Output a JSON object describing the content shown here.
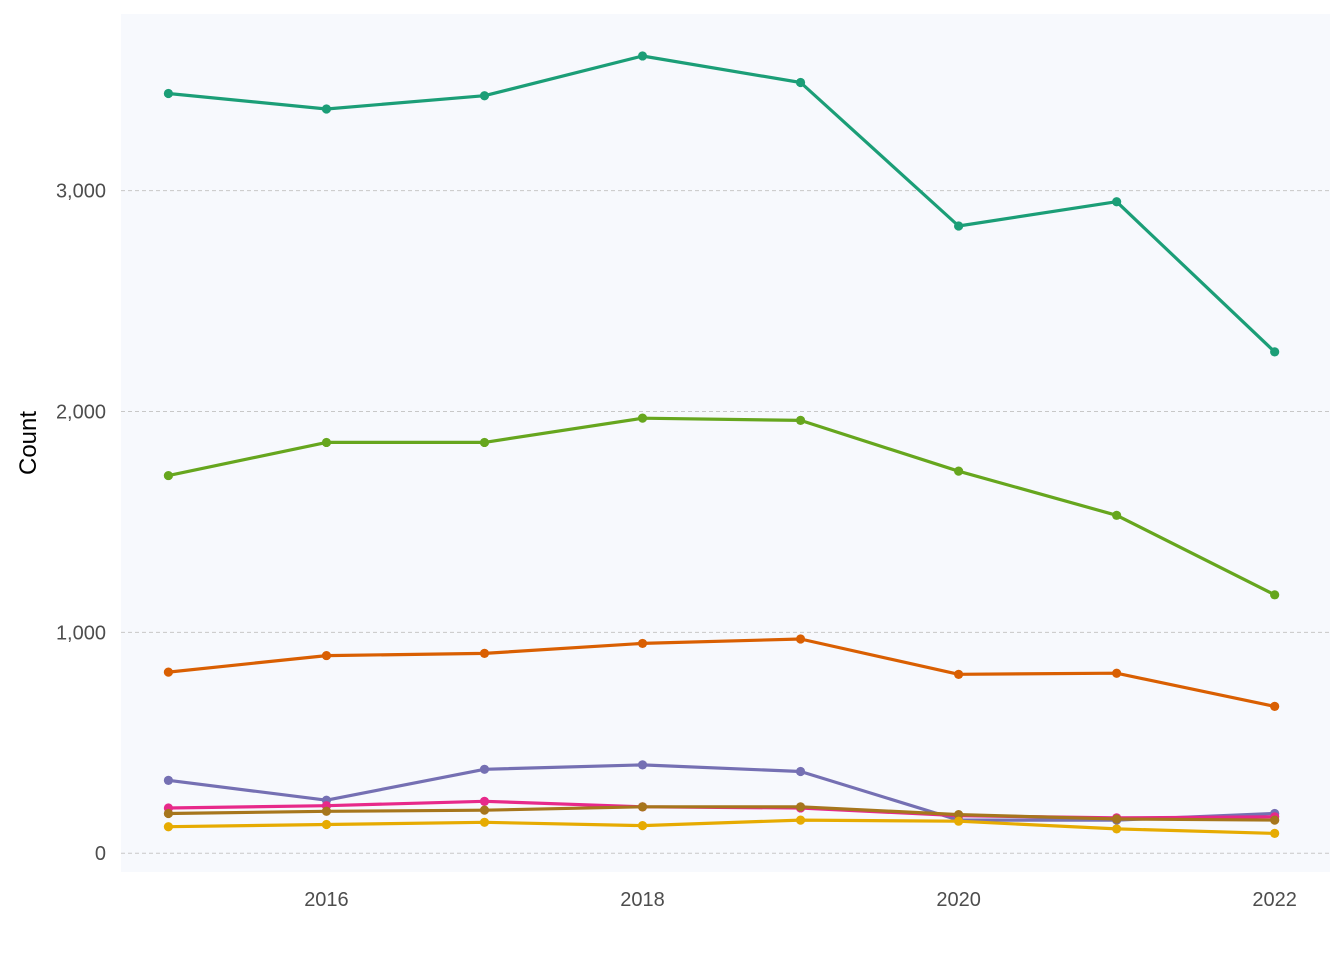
{
  "chart_data": {
    "type": "line",
    "title": "",
    "xlabel": "",
    "ylabel": "Count",
    "x": [
      2015,
      2016,
      2017,
      2018,
      2019,
      2020,
      2021,
      2022
    ],
    "xlim": [
      2014.7,
      2022.35
    ],
    "ylim": [
      -85,
      3800
    ],
    "x_ticks": [
      2016,
      2018,
      2020,
      2022
    ],
    "x_tick_labels": [
      "2016",
      "2018",
      "2020",
      "2022"
    ],
    "y_ticks": [
      0,
      1000,
      2000,
      3000
    ],
    "y_tick_labels": [
      "0",
      "1,000",
      "2,000",
      "3,000"
    ],
    "grid": "horizontal-major-dashed",
    "legend": "none",
    "panel_background": "#f7f9fd",
    "series": [
      {
        "color": "#1b9e77",
        "values": [
          3440,
          3370,
          3430,
          3610,
          3490,
          2840,
          2950,
          2270
        ]
      },
      {
        "color": "#66a61e",
        "values": [
          1710,
          1860,
          1860,
          1970,
          1960,
          1730,
          1530,
          1170
        ]
      },
      {
        "color": "#d95f02",
        "values": [
          820,
          895,
          905,
          950,
          970,
          810,
          815,
          665
        ]
      },
      {
        "color": "#7570b3",
        "values": [
          330,
          240,
          380,
          400,
          370,
          150,
          150,
          180
        ]
      },
      {
        "color": "#e7298a",
        "values": [
          205,
          215,
          235,
          210,
          205,
          170,
          160,
          165
        ]
      },
      {
        "color": "#a6761d",
        "values": [
          180,
          190,
          195,
          210,
          210,
          175,
          155,
          150
        ]
      },
      {
        "color": "#e6ab02",
        "values": [
          120,
          130,
          140,
          125,
          150,
          145,
          110,
          90
        ]
      }
    ]
  }
}
